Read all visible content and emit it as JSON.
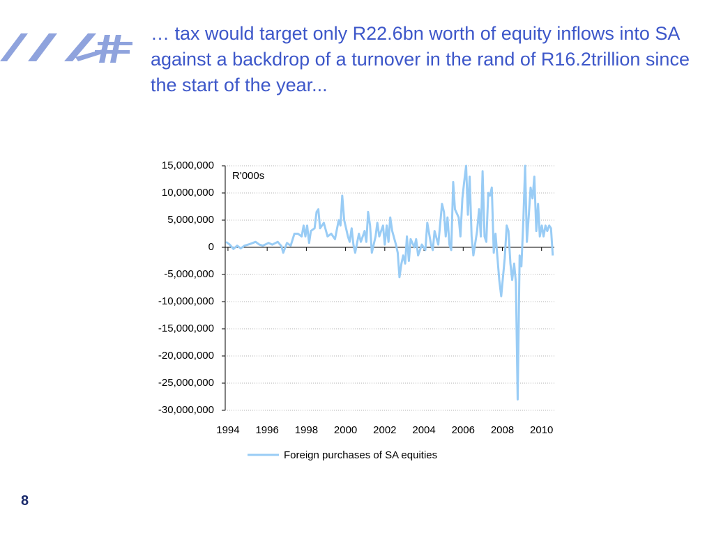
{
  "slide_title": "… tax would target only R22.6bn worth of equity inflows into SA against a backdrop of a turnover in the rand of R16.2trillion since the start of the year...",
  "page_number": "8",
  "chart_data": {
    "type": "line",
    "annotation": "R'000s",
    "grid": true,
    "legend": "bottom",
    "xlim": [
      1993.86,
      2010.65
    ],
    "xticks": [
      1994,
      1996,
      1998,
      2000,
      2002,
      2004,
      2006,
      2008,
      2010
    ],
    "ylim": [
      -30000000,
      15000000
    ],
    "yticks": [
      {
        "value": -30000000,
        "label": "-30,000,000"
      },
      {
        "value": -25000000,
        "label": "-25,000,000"
      },
      {
        "value": -20000000,
        "label": "-20,000,000"
      },
      {
        "value": -15000000,
        "label": "-15,000,000"
      },
      {
        "value": -10000000,
        "label": "-10,000,000"
      },
      {
        "value": -5000000,
        "label": "-5,000,000"
      },
      0,
      {
        "value": 5000000,
        "label": "5,000,000"
      },
      {
        "value": 10000000,
        "label": "10,000,000"
      },
      {
        "value": 15000000,
        "label": "15,000,000"
      }
    ],
    "x": [
      1993.9,
      1994.09,
      1994.28,
      1994.47,
      1994.65,
      1994.84,
      1995.12,
      1995.41,
      1995.6,
      1995.78,
      1996.07,
      1996.26,
      1996.54,
      1996.73,
      1996.82,
      1997.01,
      1997.2,
      1997.39,
      1997.57,
      1997.76,
      1997.86,
      1997.95,
      1998.04,
      1998.14,
      1998.23,
      1998.42,
      1998.52,
      1998.61,
      1998.7,
      1998.89,
      1999.08,
      1999.27,
      1999.46,
      1999.65,
      1999.74,
      1999.83,
      1999.93,
      2000.12,
      2000.21,
      2000.31,
      2000.4,
      2000.49,
      2000.68,
      2000.78,
      2000.97,
      2001.06,
      2001.15,
      2001.25,
      2001.34,
      2001.53,
      2001.62,
      2001.72,
      2001.91,
      2002.0,
      2002.1,
      2002.19,
      2002.28,
      2002.38,
      2002.57,
      2002.66,
      2002.75,
      2002.85,
      2002.94,
      2003.04,
      2003.13,
      2003.23,
      2003.32,
      2003.51,
      2003.6,
      2003.7,
      2003.89,
      2004.07,
      2004.17,
      2004.36,
      2004.45,
      2004.54,
      2004.73,
      2004.92,
      2005.02,
      2005.11,
      2005.2,
      2005.3,
      2005.39,
      2005.49,
      2005.58,
      2005.77,
      2005.86,
      2005.96,
      2006.05,
      2006.15,
      2006.24,
      2006.33,
      2006.43,
      2006.52,
      2006.71,
      2006.81,
      2006.9,
      2006.99,
      2007.09,
      2007.18,
      2007.28,
      2007.37,
      2007.46,
      2007.56,
      2007.65,
      2007.84,
      2007.94,
      2008.12,
      2008.22,
      2008.31,
      2008.41,
      2008.5,
      2008.6,
      2008.69,
      2008.78,
      2008.88,
      2008.97,
      2009.07,
      2009.16,
      2009.25,
      2009.35,
      2009.44,
      2009.54,
      2009.63,
      2009.73,
      2009.82,
      2009.91,
      2010.01,
      2010.1,
      2010.2,
      2010.29,
      2010.39,
      2010.48,
      2010.57
    ],
    "series": [
      {
        "name": "Foreign purchases of SA equities",
        "color": "#99ccf5",
        "values": [
          1000000,
          500000,
          -300000,
          300000,
          -200000,
          300000,
          600000,
          1000000,
          500000,
          300000,
          800000,
          500000,
          1000000,
          200000,
          -1000000,
          800000,
          300000,
          2500000,
          2500000,
          2000000,
          4000000,
          2000000,
          4000000,
          800000,
          3000000,
          3500000,
          6500000,
          7000000,
          3500000,
          4500000,
          2000000,
          2500000,
          1500000,
          5000000,
          4000000,
          9500000,
          5000000,
          2000000,
          1000000,
          3500000,
          500000,
          -1000000,
          2500000,
          1000000,
          3000000,
          1000000,
          6500000,
          4000000,
          -1000000,
          2000000,
          4500000,
          2000000,
          4000000,
          500000,
          4000000,
          1000000,
          5500000,
          3000000,
          500000,
          -1000000,
          -5500000,
          -3000000,
          -1500000,
          -3000000,
          2000000,
          -2500000,
          1500000,
          0,
          1500000,
          -1500000,
          500000,
          -500000,
          4500000,
          500000,
          -500000,
          3000000,
          500000,
          8000000,
          6500000,
          2000000,
          5500000,
          500000,
          -500000,
          12000000,
          7000000,
          5500000,
          2000000,
          9000000,
          12000000,
          15000000,
          6000000,
          13000000,
          2000000,
          -1500000,
          3000000,
          7000000,
          2000000,
          14000000,
          2000000,
          1000000,
          10000000,
          9500000,
          11000000,
          -1000000,
          2500000,
          -6000000,
          -9000000,
          -2000000,
          4000000,
          3000000,
          -3000000,
          -6000000,
          -3000000,
          -6500000,
          -28000000,
          -1500000,
          -3500000,
          5000000,
          15000000,
          1000000,
          6000000,
          11000000,
          9000000,
          13000000,
          3000000,
          8000000,
          2000000,
          4000000,
          2000000,
          4000000,
          3000000,
          4000000,
          3500000,
          -1500000
        ]
      }
    ]
  }
}
